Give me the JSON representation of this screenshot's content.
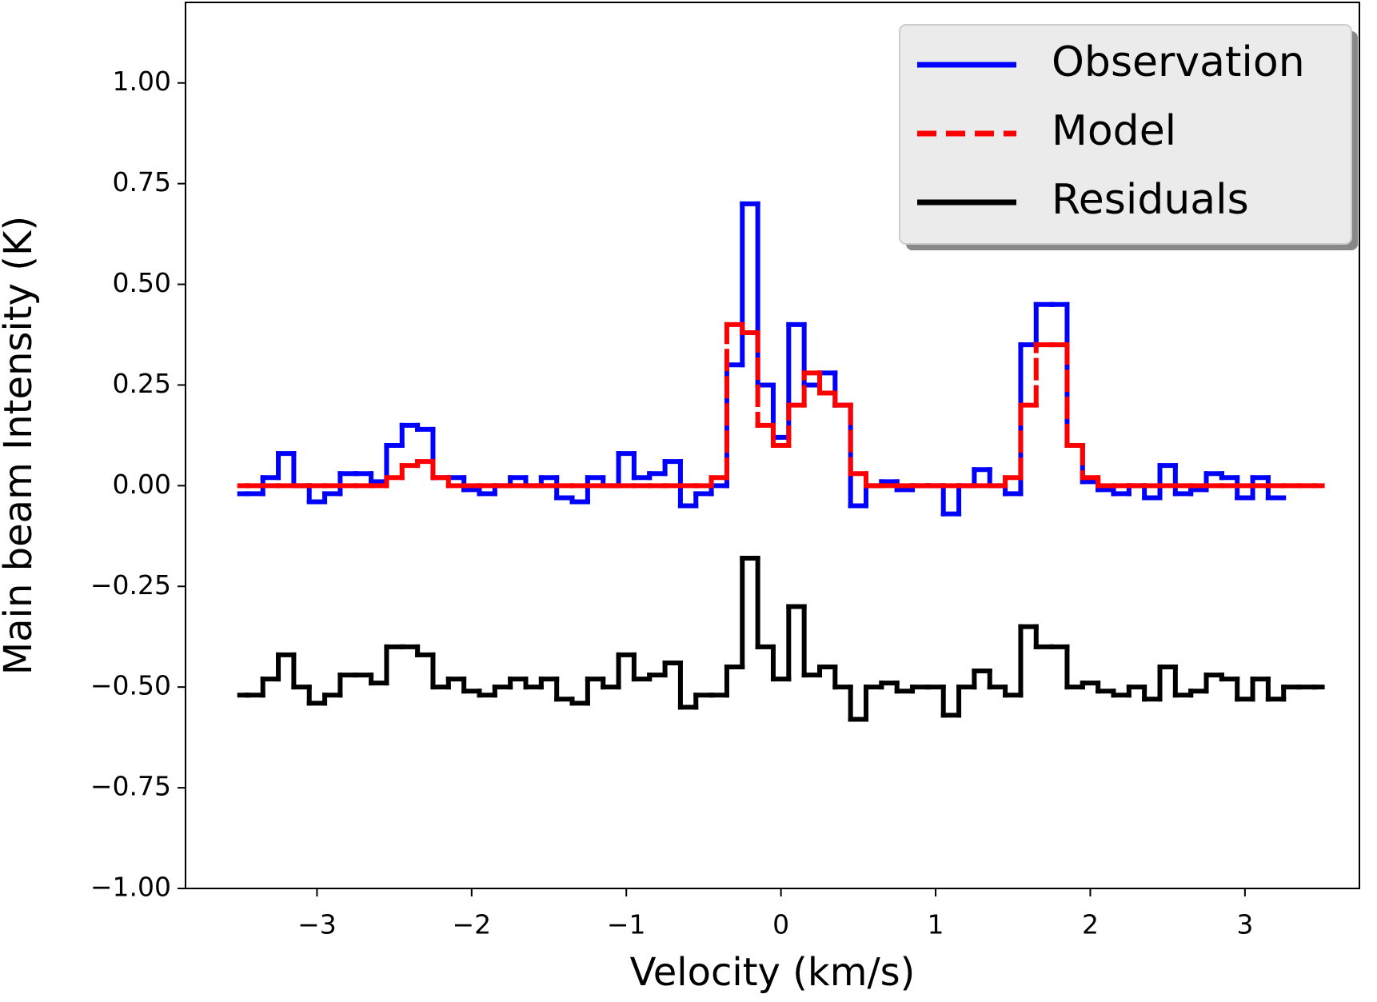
{
  "chart_data": {
    "type": "step",
    "xlabel": "Velocity (km/s)",
    "ylabel": "Main beam Intensity (K)",
    "x": [
      -3.5,
      -3.4,
      -3.3,
      -3.2,
      -3.1,
      -3.0,
      -2.9,
      -2.8,
      -2.7,
      -2.6,
      -2.5,
      -2.4,
      -2.3,
      -2.2,
      -2.1,
      -2.0,
      -1.9,
      -1.8,
      -1.7,
      -1.6,
      -1.5,
      -1.4,
      -1.3,
      -1.2,
      -1.1,
      -1.0,
      -0.9,
      -0.8,
      -0.7,
      -0.6,
      -0.5,
      -0.4,
      -0.3,
      -0.2,
      -0.1,
      0.0,
      0.1,
      0.2,
      0.3,
      0.4,
      0.5,
      0.6,
      0.7,
      0.8,
      0.9,
      1.0,
      1.1,
      1.2,
      1.3,
      1.4,
      1.5,
      1.6,
      1.7,
      1.8,
      1.9,
      2.0,
      2.1,
      2.2,
      2.3,
      2.4,
      2.5,
      2.6,
      2.7,
      2.8,
      2.9,
      3.0,
      3.1,
      3.2,
      3.3,
      3.4,
      3.5
    ],
    "series": [
      {
        "name": "Observation",
        "color": "#0000ff",
        "dash": "solid",
        "values": [
          -0.02,
          -0.02,
          0.02,
          0.08,
          0.0,
          -0.04,
          -0.02,
          0.03,
          0.03,
          0.01,
          0.1,
          0.15,
          0.14,
          0.02,
          0.02,
          -0.01,
          -0.02,
          0.0,
          0.02,
          0.0,
          0.02,
          -0.03,
          -0.04,
          0.02,
          0.0,
          0.08,
          0.02,
          0.03,
          0.06,
          -0.05,
          -0.02,
          0.0,
          0.3,
          0.7,
          0.25,
          0.12,
          0.4,
          0.25,
          0.28,
          0.2,
          -0.05,
          0.0,
          0.01,
          -0.01,
          0.0,
          0.0,
          -0.07,
          0.0,
          0.04,
          0.0,
          -0.02,
          0.35,
          0.45,
          0.45,
          0.1,
          0.01,
          -0.01,
          -0.02,
          0.0,
          -0.03,
          0.05,
          -0.02,
          -0.01,
          0.03,
          0.02,
          -0.03,
          0.02,
          -0.03,
          null,
          null,
          null
        ]
      },
      {
        "name": "Model",
        "color": "#ff0000",
        "dash": "dashed",
        "values": [
          0,
          0,
          0,
          0,
          0,
          0,
          0,
          0,
          0,
          0,
          0.02,
          0.05,
          0.06,
          0.02,
          0,
          0,
          0,
          0,
          0,
          0,
          0,
          0,
          0,
          0,
          0,
          0,
          0,
          0,
          0,
          0,
          0,
          0.02,
          0.4,
          0.38,
          0.15,
          0.1,
          0.2,
          0.28,
          0.23,
          0.2,
          0.03,
          0,
          0,
          0,
          0,
          0,
          0,
          0,
          0,
          0,
          0.02,
          0.2,
          0.35,
          0.35,
          0.1,
          0.02,
          0,
          0,
          0,
          0,
          0,
          0,
          0,
          0,
          0,
          0,
          0,
          0,
          0,
          0,
          0
        ]
      },
      {
        "name": "Residuals",
        "color": "#000000",
        "dash": "solid",
        "values": [
          -0.52,
          -0.52,
          -0.48,
          -0.42,
          -0.5,
          -0.54,
          -0.52,
          -0.47,
          -0.47,
          -0.49,
          -0.4,
          -0.4,
          -0.42,
          -0.5,
          -0.48,
          -0.51,
          -0.52,
          -0.5,
          -0.48,
          -0.5,
          -0.48,
          -0.53,
          -0.54,
          -0.48,
          -0.5,
          -0.42,
          -0.48,
          -0.47,
          -0.44,
          -0.55,
          -0.52,
          -0.52,
          -0.45,
          -0.18,
          -0.4,
          -0.48,
          -0.3,
          -0.47,
          -0.45,
          -0.5,
          -0.58,
          -0.5,
          -0.49,
          -0.51,
          -0.5,
          -0.5,
          -0.57,
          -0.5,
          -0.46,
          -0.5,
          -0.52,
          -0.35,
          -0.4,
          -0.4,
          -0.5,
          -0.49,
          -0.51,
          -0.52,
          -0.5,
          -0.53,
          -0.45,
          -0.52,
          -0.51,
          -0.47,
          -0.48,
          -0.53,
          -0.48,
          -0.53,
          -0.5,
          -0.5,
          -0.5
        ]
      }
    ],
    "xlim": [
      -3.85,
      3.74
    ],
    "ylim": [
      -1.0,
      1.2
    ],
    "xticks": [
      {
        "value": -3,
        "label": "−3"
      },
      {
        "value": -2,
        "label": "−2"
      },
      {
        "value": -1,
        "label": "−1"
      },
      0,
      1,
      2,
      3
    ],
    "yticks": [
      {
        "value": -1.0,
        "label": "−1.00"
      },
      {
        "value": -0.75,
        "label": "−0.75"
      },
      {
        "value": -0.5,
        "label": "−0.50"
      },
      {
        "value": -0.25,
        "label": "−0.25"
      },
      {
        "value": 0.0,
        "label": "0.00"
      },
      {
        "value": 0.25,
        "label": "0.25"
      },
      {
        "value": 0.5,
        "label": "0.50"
      },
      {
        "value": 0.75,
        "label": "0.75"
      },
      {
        "value": 1.0,
        "label": "1.00"
      }
    ],
    "legend": "upper right",
    "grid": false
  }
}
